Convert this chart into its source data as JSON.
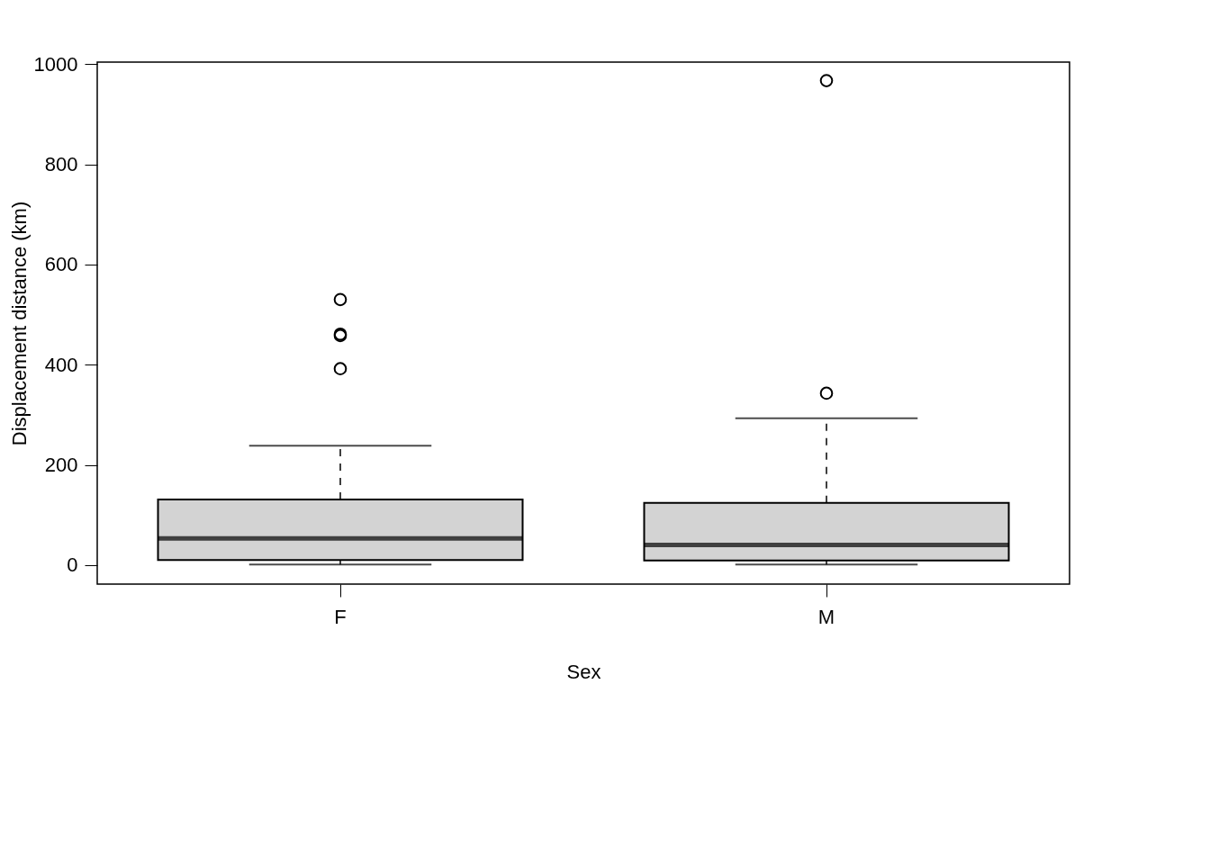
{
  "chart_data": {
    "type": "box",
    "xlabel": "Sex",
    "ylabel": "Displacement distance (km)",
    "categories": [
      "F",
      "M"
    ],
    "series": [
      {
        "color": "#d3d3d3",
        "boxes": [
          {
            "low": 1,
            "q1": 10,
            "median": 53,
            "q3": 131,
            "high": 238,
            "outliers": [
              392,
              458,
              461,
              530
            ]
          },
          {
            "low": 1,
            "q1": 9,
            "median": 40,
            "q3": 124,
            "high": 293,
            "outliers": [
              343,
              967
            ]
          }
        ]
      }
    ],
    "ylim": [
      -38,
      1004
    ],
    "yticks": [
      0,
      200,
      400,
      600,
      800,
      1000
    ]
  }
}
